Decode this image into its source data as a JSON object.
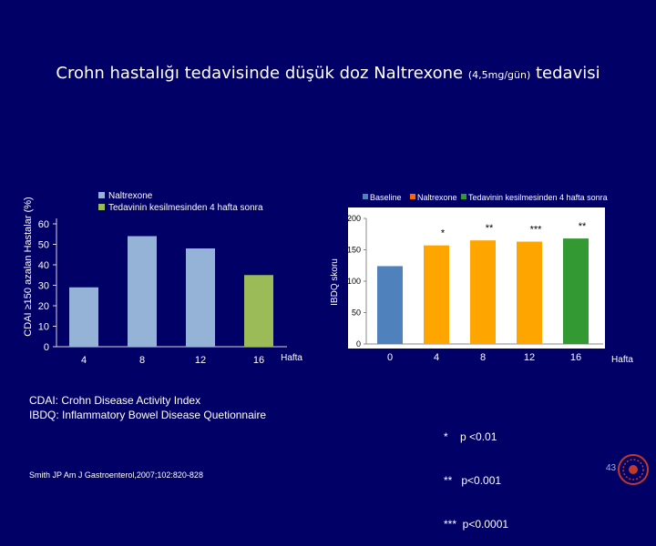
{
  "title": {
    "main": "Crohn hastalığı  tedavisinde düşük doz Naltrexone",
    "dose": "(4,5mg/gün)",
    "tail": "tedavisi"
  },
  "chart_data": [
    {
      "type": "bar",
      "legend": [
        "Naltrexone",
        "Tedavinin kesilmesinden 4 hafta sonra"
      ],
      "legend_placement": "top-left",
      "categories": [
        "4",
        "8",
        "12",
        "16"
      ],
      "values": [
        29,
        54,
        48,
        35
      ],
      "bar_colors": [
        "#95b3d7",
        "#95b3d7",
        "#95b3d7",
        "#9bbb59"
      ],
      "xlabel": "Hafta",
      "ylabel": "CDAI ≥150  azalan Hastalar (%)",
      "ylim": [
        0,
        60
      ],
      "yticks": [
        "0",
        "10",
        "20",
        "30",
        "40",
        "50",
        "60"
      ]
    },
    {
      "type": "bar",
      "legend": [
        "Baseline",
        "Naltrexone",
        "Tedavinin kesilmesinden 4 hafta sonra"
      ],
      "legend_placement": "top",
      "legend_colors": [
        "#4f81bd",
        "#ff6600",
        "#339933"
      ],
      "categories": [
        "0",
        "4",
        "8",
        "12",
        "16"
      ],
      "values": [
        124,
        157,
        165,
        163,
        168
      ],
      "bar_colors": [
        "#4f81bd",
        "#ffa500",
        "#ffa500",
        "#ffa500",
        "#339933"
      ],
      "annotations": [
        "",
        "*",
        "**",
        "***",
        "**"
      ],
      "xlabel": "Hafta",
      "ylabel": "IBDQ skoru",
      "ylim": [
        0,
        200
      ],
      "yticks": [
        "0",
        "50",
        "100",
        "150",
        "200"
      ]
    }
  ],
  "definitions": [
    "CDAI:  Crohn Disease Activity Index",
    "IBDQ:  Inflammatory Bowel Disease Quetionnaire"
  ],
  "significance": [
    "*    p <0.01",
    "**   p<0.001",
    "***  p<0.0001"
  ],
  "reference": "Smith JP Am J Gastroenterol,2007;102:820-828",
  "page_number": "43"
}
